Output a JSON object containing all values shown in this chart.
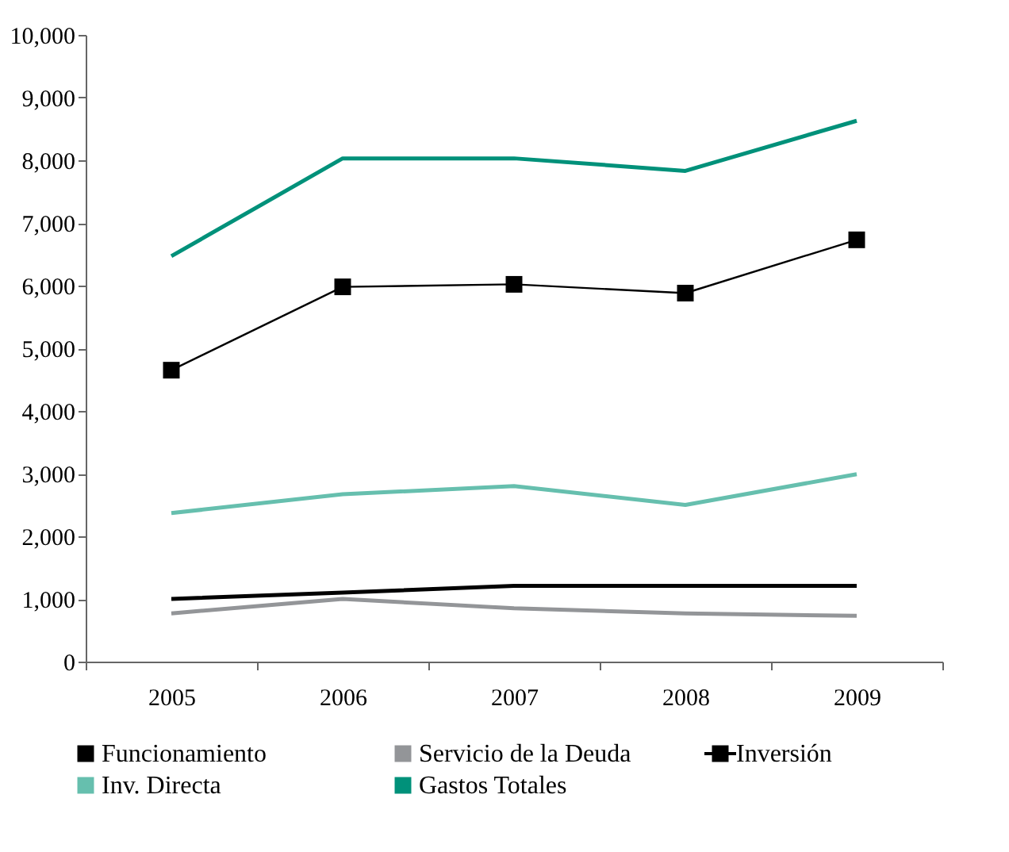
{
  "chart_data": {
    "type": "line",
    "categories": [
      "2005",
      "2006",
      "2007",
      "2008",
      "2009"
    ],
    "series": [
      {
        "name": "Funcionamiento",
        "color": "#000000",
        "values": [
          1000,
          1100,
          1210,
          1210,
          1210
        ]
      },
      {
        "name": "Servicio de la Deuda",
        "color": "#939598",
        "values": [
          770,
          1000,
          850,
          770,
          730
        ]
      },
      {
        "name": "Inversión",
        "color": "#000000",
        "marker": "square",
        "values": [
          4650,
          5980,
          6020,
          5880,
          6730
        ]
      },
      {
        "name": "Inv. Directa",
        "color": "#66bfae",
        "values": [
          2370,
          2670,
          2800,
          2500,
          2990
        ]
      },
      {
        "name": "Gastos Totales",
        "color": "#00917a",
        "values": [
          6470,
          8030,
          8030,
          7830,
          8630
        ]
      }
    ],
    "ylim": [
      0,
      10000
    ],
    "yticks": [
      0,
      {
        "value": 1000,
        "label": "1,000"
      },
      {
        "value": 2000,
        "label": "2,000"
      },
      {
        "value": 3000,
        "label": "3,000"
      },
      {
        "value": 4000,
        "label": "4,000"
      },
      {
        "value": 5000,
        "label": "5,000"
      },
      {
        "value": 6000,
        "label": "6,000"
      },
      {
        "value": 7000,
        "label": "7,000"
      },
      {
        "value": 8000,
        "label": "8,000"
      },
      {
        "value": 9000,
        "label": "9,000"
      },
      {
        "value": 10000,
        "label": "10,000"
      }
    ],
    "grid": false,
    "legend": "bottom"
  }
}
